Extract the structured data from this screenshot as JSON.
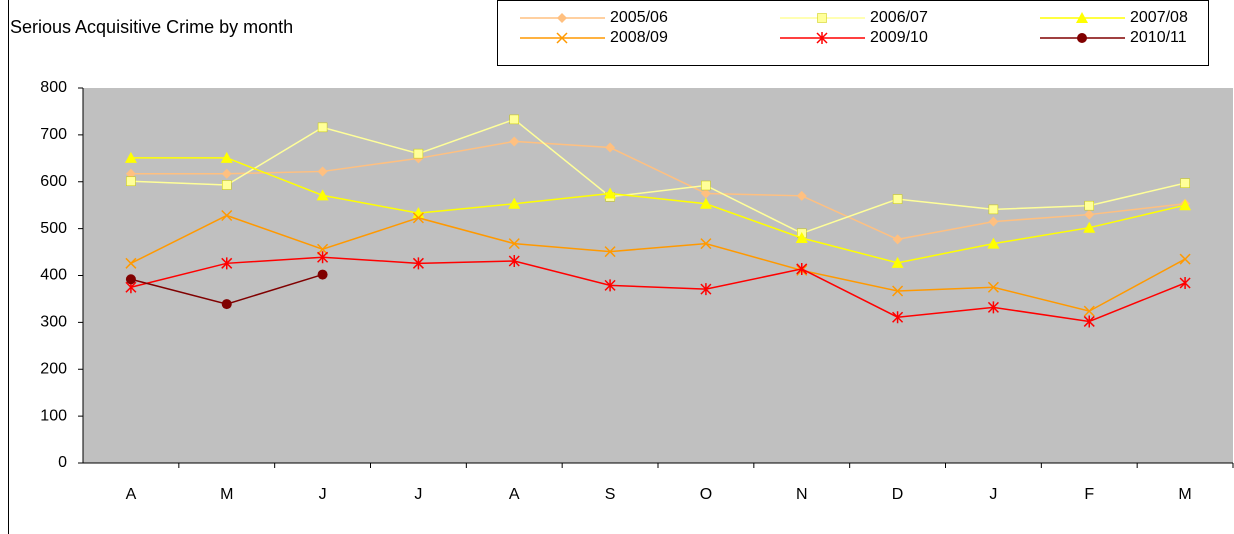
{
  "chart_data": {
    "type": "line",
    "title": "Serious Acquisitive Crime by month",
    "categories": [
      "A",
      "M",
      "J",
      "J",
      "A",
      "S",
      "O",
      "N",
      "D",
      "J",
      "F",
      "M"
    ],
    "series": [
      {
        "name": "2005/06",
        "color": "#FFC080",
        "marker": "diamond",
        "values": [
          617,
          617,
          622,
          650,
          686,
          673,
          575,
          570,
          477,
          515,
          530,
          553
        ]
      },
      {
        "name": "2006/07",
        "color": "#FFFF99",
        "marker": "square",
        "values": [
          601,
          593,
          716,
          660,
          733,
          568,
          592,
          490,
          563,
          541,
          549,
          597
        ]
      },
      {
        "name": "2007/08",
        "color": "#FFFF00",
        "marker": "triangle",
        "values": [
          651,
          651,
          571,
          533,
          553,
          575,
          553,
          480,
          427,
          468,
          502,
          550
        ]
      },
      {
        "name": "2008/09",
        "color": "#FF9900",
        "marker": "x",
        "values": [
          426,
          528,
          456,
          523,
          468,
          451,
          468,
          411,
          367,
          375,
          324,
          435
        ]
      },
      {
        "name": "2009/10",
        "color": "#FF0000",
        "marker": "star",
        "values": [
          375,
          426,
          439,
          426,
          431,
          379,
          371,
          414,
          311,
          332,
          302,
          384
        ]
      },
      {
        "name": "2010/11",
        "color": "#800000",
        "marker": "circle",
        "values": [
          392,
          339,
          402,
          null,
          null,
          null,
          null,
          null,
          null,
          null,
          null,
          null
        ]
      }
    ],
    "ylim": [
      0,
      800
    ],
    "yticks": [
      0,
      100,
      200,
      300,
      400,
      500,
      600,
      700,
      800
    ],
    "grid": false,
    "plot_background": "#C0C0C0",
    "legend": "top-right"
  }
}
